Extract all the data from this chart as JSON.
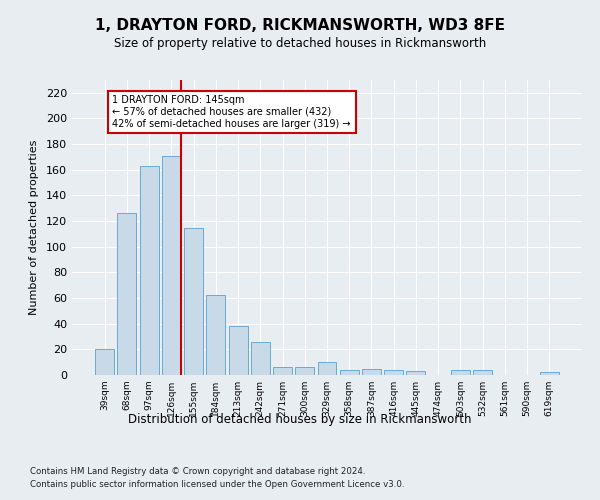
{
  "title": "1, DRAYTON FORD, RICKMANSWORTH, WD3 8FE",
  "subtitle": "Size of property relative to detached houses in Rickmansworth",
  "xlabel": "Distribution of detached houses by size in Rickmansworth",
  "ylabel": "Number of detached properties",
  "categories": [
    "39sqm",
    "68sqm",
    "97sqm",
    "126sqm",
    "155sqm",
    "184sqm",
    "213sqm",
    "242sqm",
    "271sqm",
    "300sqm",
    "329sqm",
    "358sqm",
    "387sqm",
    "416sqm",
    "445sqm",
    "474sqm",
    "503sqm",
    "532sqm",
    "561sqm",
    "590sqm",
    "619sqm"
  ],
  "values": [
    20,
    126,
    163,
    171,
    115,
    62,
    38,
    26,
    6,
    6,
    10,
    4,
    5,
    4,
    3,
    0,
    4,
    4,
    0,
    0,
    2
  ],
  "bar_color": "#c8d9e8",
  "bar_edge_color": "#6aaad4",
  "marker_line_color": "#cc0000",
  "annotation_line1": "1 DRAYTON FORD: 145sqm",
  "annotation_line2": "← 57% of detached houses are smaller (432)",
  "annotation_line3": "42% of semi-detached houses are larger (319) →",
  "annotation_box_color": "#ffffff",
  "annotation_box_edge": "#cc0000",
  "ylim": [
    0,
    230
  ],
  "yticks": [
    0,
    20,
    40,
    60,
    80,
    100,
    120,
    140,
    160,
    180,
    200,
    220
  ],
  "background_color": "#e8edf2",
  "plot_bg_color": "#e8edf2",
  "marker_bar_index": 3,
  "footer_line1": "Contains HM Land Registry data © Crown copyright and database right 2024.",
  "footer_line2": "Contains public sector information licensed under the Open Government Licence v3.0."
}
